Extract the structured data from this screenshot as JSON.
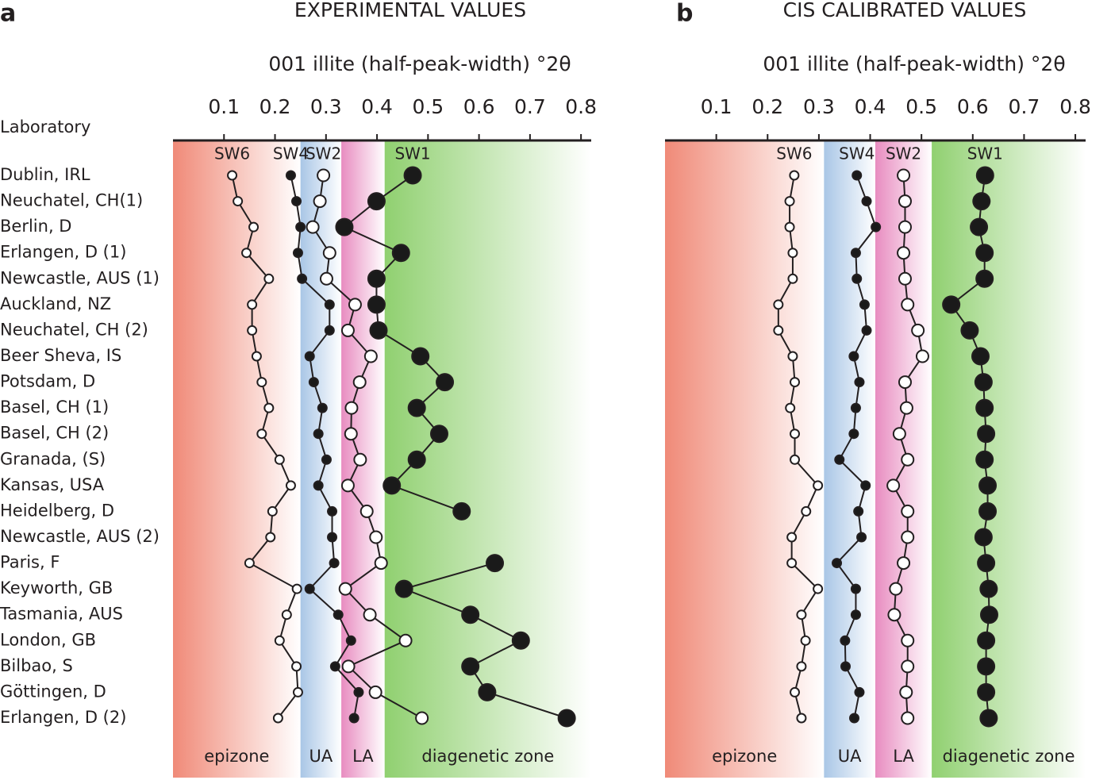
{
  "chart_data": [
    {
      "type": "line",
      "panel": "a",
      "title": "EXPERIMENTAL VALUES",
      "x_label": "001 illite (half-peak-width) °2θ",
      "y_label": "Laboratory",
      "categories": [
        "Dublin, IRL",
        "Neuchatel, CH(1)",
        "Berlin, D",
        "Erlangen, D (1)",
        "Newcastle, AUS (1)",
        "Auckland, NZ",
        "Neuchatel, CH (2)",
        "Beer Sheva, IS",
        "Potsdam, D",
        "Basel, CH (1)",
        "Basel, CH (2)",
        "Granada, (S)",
        "Kansas, USA",
        "Heidelberg, D",
        "Newcastle, AUS (2)",
        "Paris, F",
        "Keyworth, GB",
        "Tasmania, AUS",
        "London, GB",
        "Bilbao, S",
        "Göttingen, D",
        "Erlangen, D (2)"
      ],
      "xlim": [
        0,
        0.82
      ],
      "xticks": [
        0.1,
        0.2,
        0.3,
        0.4,
        0.5,
        0.6,
        0.7,
        0.8
      ],
      "zones": [
        {
          "label": "epizone",
          "from": 0,
          "to": 0.25,
          "color": "#f08a78"
        },
        {
          "label": "UA",
          "from": 0.25,
          "to": 0.33,
          "color": "#a9c6e6"
        },
        {
          "label": "LA",
          "from": 0.33,
          "to": 0.415,
          "color": "#e88cc0"
        },
        {
          "label": "diagenetic zone",
          "from": 0.415,
          "to": 0.82,
          "color": "#90d070"
        }
      ],
      "series": [
        {
          "name": "SW6",
          "color": "#ffffff",
          "values": [
            0.116,
            0.127,
            0.158,
            0.144,
            0.188,
            0.155,
            0.155,
            0.164,
            0.174,
            0.188,
            0.174,
            0.209,
            0.231,
            0.195,
            0.191,
            0.15,
            0.243,
            0.223,
            0.209,
            0.242,
            0.245,
            0.206
          ]
        },
        {
          "name": "SW4",
          "color": "#1a1a1a",
          "values": [
            0.231,
            0.242,
            0.25,
            0.245,
            0.253,
            0.307,
            0.307,
            0.268,
            0.276,
            0.293,
            0.285,
            0.301,
            0.285,
            0.312,
            0.312,
            0.316,
            0.268,
            0.324,
            0.349,
            0.318,
            0.364,
            0.355
          ]
        },
        {
          "name": "SW2",
          "color": "#ffffff",
          "values": [
            0.295,
            0.288,
            0.274,
            0.307,
            0.301,
            0.357,
            0.343,
            0.388,
            0.366,
            0.35,
            0.349,
            0.367,
            0.343,
            0.38,
            0.398,
            0.408,
            0.338,
            0.386,
            0.456,
            0.344,
            0.397,
            0.488
          ]
        },
        {
          "name": "SW1",
          "color": "#1a1a1a",
          "values": [
            0.47,
            0.399,
            0.336,
            0.447,
            0.399,
            0.399,
            0.403,
            0.485,
            0.533,
            0.478,
            0.522,
            0.478,
            0.429,
            0.566,
            null,
            0.631,
            0.453,
            0.583,
            0.682,
            0.583,
            0.616,
            0.772
          ]
        }
      ]
    },
    {
      "type": "line",
      "panel": "b",
      "title": "CIS CALIBRATED VALUES",
      "x_label": "001 illite (half-peak-width) °2θ",
      "xlim": [
        0,
        0.82
      ],
      "xticks": [
        0.1,
        0.2,
        0.3,
        0.4,
        0.5,
        0.6,
        0.7,
        0.8
      ],
      "zones": [
        {
          "label": "epizone",
          "from": 0,
          "to": 0.31,
          "color": "#f08a78"
        },
        {
          "label": "UA",
          "from": 0.31,
          "to": 0.41,
          "color": "#a9c6e6"
        },
        {
          "label": "LA",
          "from": 0.41,
          "to": 0.52,
          "color": "#e88cc0"
        },
        {
          "label": "diagenetic zone",
          "from": 0.52,
          "to": 0.82,
          "color": "#90d070"
        }
      ],
      "series": [
        {
          "name": "SW6",
          "color": "#ffffff",
          "values": [
            0.252,
            0.243,
            0.243,
            0.249,
            0.249,
            0.221,
            0.221,
            0.249,
            0.253,
            0.244,
            0.253,
            0.253,
            0.298,
            0.275,
            0.247,
            0.247,
            0.298,
            0.266,
            0.274,
            0.266,
            0.253,
            0.266
          ]
        },
        {
          "name": "SW4",
          "color": "#1a1a1a",
          "values": [
            0.374,
            0.393,
            0.411,
            0.372,
            0.374,
            0.389,
            0.393,
            0.368,
            0.379,
            0.372,
            0.368,
            0.34,
            0.391,
            0.377,
            0.383,
            0.335,
            0.372,
            0.372,
            0.351,
            0.352,
            0.379,
            0.369
          ]
        },
        {
          "name": "SW2",
          "color": "#ffffff",
          "values": [
            0.465,
            0.468,
            0.468,
            0.465,
            0.468,
            0.473,
            0.493,
            0.502,
            0.468,
            0.471,
            0.457,
            0.473,
            0.445,
            0.473,
            0.473,
            0.465,
            0.45,
            0.447,
            0.473,
            0.473,
            0.47,
            0.473
          ]
        },
        {
          "name": "SW1",
          "color": "#1a1a1a",
          "values": [
            0.624,
            0.617,
            0.612,
            0.623,
            0.623,
            0.558,
            0.594,
            0.615,
            0.621,
            0.623,
            0.626,
            0.623,
            0.629,
            0.629,
            0.621,
            0.626,
            0.631,
            0.632,
            0.626,
            0.626,
            0.626,
            0.631
          ]
        }
      ]
    }
  ]
}
